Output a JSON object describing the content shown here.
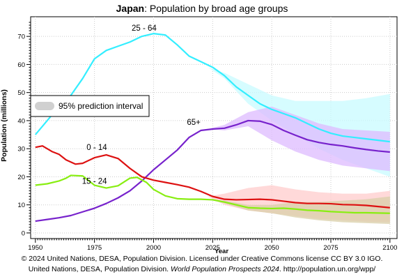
{
  "chart_data": {
    "type": "line",
    "title_country": "Japan",
    "title_rest": ": Population by broad age groups",
    "xlabel": "Year",
    "ylabel": "Population (millions)",
    "xlim": [
      1948,
      2103
    ],
    "ylim": [
      -2,
      77
    ],
    "x_ticks": [
      1950,
      1975,
      2000,
      2025,
      2050,
      2075,
      2100
    ],
    "y_ticks": [
      0,
      10,
      20,
      30,
      40,
      50,
      60,
      70
    ],
    "legend": {
      "label": "95% prediction interval",
      "placement": "left-middle"
    },
    "series": [
      {
        "name": "25 - 64",
        "color": "#33eeff",
        "band_color": "#c8fbff",
        "label_x": 1996,
        "label_y": 72,
        "points": [
          [
            1950,
            35
          ],
          [
            1955,
            40
          ],
          [
            1960,
            45
          ],
          [
            1965,
            49
          ],
          [
            1970,
            55
          ],
          [
            1975,
            62
          ],
          [
            1980,
            65
          ],
          [
            1985,
            66.5
          ],
          [
            1990,
            68
          ],
          [
            1995,
            70
          ],
          [
            2000,
            71
          ],
          [
            2005,
            70.5
          ],
          [
            2010,
            67
          ],
          [
            2015,
            63
          ],
          [
            2020,
            61
          ],
          [
            2025,
            59
          ],
          [
            2030,
            56
          ],
          [
            2035,
            52
          ],
          [
            2040,
            49
          ],
          [
            2045,
            46
          ],
          [
            2050,
            44
          ],
          [
            2055,
            42.5
          ],
          [
            2060,
            41
          ],
          [
            2065,
            39
          ],
          [
            2070,
            37
          ],
          [
            2075,
            35.5
          ],
          [
            2080,
            34.5
          ],
          [
            2085,
            34
          ],
          [
            2090,
            33.5
          ],
          [
            2095,
            33
          ],
          [
            2100,
            32.5
          ]
        ],
        "band_upper": [
          [
            2023,
            59
          ],
          [
            2030,
            57
          ],
          [
            2040,
            53
          ],
          [
            2050,
            49
          ],
          [
            2060,
            47
          ],
          [
            2070,
            47
          ],
          [
            2080,
            47
          ],
          [
            2090,
            48
          ],
          [
            2100,
            49.5
          ]
        ],
        "band_lower": [
          [
            2023,
            59
          ],
          [
            2030,
            55
          ],
          [
            2040,
            46
          ],
          [
            2050,
            40
          ],
          [
            2060,
            35
          ],
          [
            2070,
            30
          ],
          [
            2080,
            26
          ],
          [
            2090,
            23
          ],
          [
            2100,
            20
          ]
        ]
      },
      {
        "name": "65+",
        "color": "#7722cc",
        "band_color": "#ddbbff",
        "label_x": 2017,
        "label_y": 38.5,
        "points": [
          [
            1950,
            4.2
          ],
          [
            1955,
            4.8
          ],
          [
            1960,
            5.4
          ],
          [
            1965,
            6.2
          ],
          [
            1970,
            7.5
          ],
          [
            1975,
            8.8
          ],
          [
            1980,
            10.5
          ],
          [
            1985,
            12.5
          ],
          [
            1990,
            15
          ],
          [
            1995,
            18.5
          ],
          [
            2000,
            22.5
          ],
          [
            2005,
            26
          ],
          [
            2010,
            29.5
          ],
          [
            2015,
            34
          ],
          [
            2020,
            36.5
          ],
          [
            2025,
            37
          ],
          [
            2030,
            37.3
          ],
          [
            2035,
            38.5
          ],
          [
            2040,
            40
          ],
          [
            2045,
            39.8
          ],
          [
            2050,
            38.6
          ],
          [
            2055,
            36.5
          ],
          [
            2060,
            34.8
          ],
          [
            2065,
            33.2
          ],
          [
            2070,
            32.2
          ],
          [
            2075,
            31.5
          ],
          [
            2080,
            31
          ],
          [
            2085,
            30.3
          ],
          [
            2090,
            29.7
          ],
          [
            2095,
            29.2
          ],
          [
            2100,
            28.8
          ]
        ],
        "band_upper": [
          [
            2023,
            37
          ],
          [
            2030,
            38.5
          ],
          [
            2040,
            43
          ],
          [
            2050,
            45
          ],
          [
            2060,
            42
          ],
          [
            2070,
            39
          ],
          [
            2080,
            37
          ],
          [
            2090,
            36.5
          ],
          [
            2100,
            36
          ]
        ],
        "band_lower": [
          [
            2023,
            37
          ],
          [
            2030,
            36.5
          ],
          [
            2040,
            38
          ],
          [
            2050,
            33
          ],
          [
            2060,
            29
          ],
          [
            2070,
            26
          ],
          [
            2080,
            24
          ],
          [
            2090,
            23
          ],
          [
            2100,
            22
          ]
        ]
      },
      {
        "name": "0 - 14",
        "color": "#dd1111",
        "band_color": "#ffcccc",
        "label_x": 1976,
        "label_y": 29.5,
        "points": [
          [
            1950,
            30.5
          ],
          [
            1953,
            31
          ],
          [
            1957,
            29
          ],
          [
            1960,
            28
          ],
          [
            1963,
            26
          ],
          [
            1967,
            24.5
          ],
          [
            1970,
            24.8
          ],
          [
            1975,
            26.8
          ],
          [
            1980,
            27.8
          ],
          [
            1985,
            26.5
          ],
          [
            1990,
            23
          ],
          [
            1995,
            20
          ],
          [
            2000,
            18.8
          ],
          [
            2005,
            18
          ],
          [
            2010,
            17.2
          ],
          [
            2015,
            16.3
          ],
          [
            2020,
            14.8
          ],
          [
            2025,
            13
          ],
          [
            2030,
            12
          ],
          [
            2035,
            11.8
          ],
          [
            2040,
            11.9
          ],
          [
            2045,
            12
          ],
          [
            2050,
            11.8
          ],
          [
            2055,
            11.3
          ],
          [
            2060,
            10.8
          ],
          [
            2065,
            10.5
          ],
          [
            2070,
            10.5
          ],
          [
            2075,
            10.4
          ],
          [
            2080,
            10.1
          ],
          [
            2085,
            10
          ],
          [
            2090,
            9.8
          ],
          [
            2095,
            9.4
          ],
          [
            2100,
            9.0
          ]
        ],
        "band_upper": [
          [
            2023,
            13
          ],
          [
            2030,
            14
          ],
          [
            2040,
            16
          ],
          [
            2050,
            17
          ],
          [
            2060,
            15.5
          ],
          [
            2070,
            14.5
          ],
          [
            2080,
            14
          ],
          [
            2090,
            14
          ],
          [
            2100,
            15
          ]
        ],
        "band_lower": [
          [
            2023,
            13
          ],
          [
            2030,
            10
          ],
          [
            2040,
            8
          ],
          [
            2050,
            7
          ],
          [
            2060,
            6
          ],
          [
            2070,
            5
          ],
          [
            2080,
            4.5
          ],
          [
            2090,
            4
          ],
          [
            2100,
            3.8
          ]
        ]
      },
      {
        "name": "15 - 24",
        "color": "#88ee11",
        "band_color": "#d9cfa8",
        "label_x": 1975,
        "label_y": 17.5,
        "points": [
          [
            1950,
            17
          ],
          [
            1955,
            17.5
          ],
          [
            1960,
            18.5
          ],
          [
            1963,
            19.5
          ],
          [
            1965,
            20.5
          ],
          [
            1970,
            20.3
          ],
          [
            1975,
            17
          ],
          [
            1980,
            16
          ],
          [
            1985,
            16.8
          ],
          [
            1990,
            19.5
          ],
          [
            1993,
            19.8
          ],
          [
            1997,
            18
          ],
          [
            2000,
            15.5
          ],
          [
            2005,
            13.2
          ],
          [
            2010,
            12.2
          ],
          [
            2015,
            12
          ],
          [
            2020,
            12
          ],
          [
            2025,
            11.8
          ],
          [
            2030,
            11
          ],
          [
            2035,
            10
          ],
          [
            2040,
            9
          ],
          [
            2045,
            8.8
          ],
          [
            2050,
            8.7
          ],
          [
            2055,
            8.8
          ],
          [
            2060,
            8.5
          ],
          [
            2065,
            8.1
          ],
          [
            2070,
            7.9
          ],
          [
            2075,
            7.6
          ],
          [
            2080,
            7.4
          ],
          [
            2085,
            7.2
          ],
          [
            2090,
            7.2
          ],
          [
            2095,
            7.1
          ],
          [
            2100,
            7.0
          ]
        ],
        "band_upper": [
          [
            2023,
            12
          ],
          [
            2030,
            11.5
          ],
          [
            2040,
            10
          ],
          [
            2050,
            10
          ],
          [
            2060,
            11
          ],
          [
            2070,
            11
          ],
          [
            2080,
            11.5
          ],
          [
            2090,
            12
          ],
          [
            2100,
            13
          ]
        ],
        "band_lower": [
          [
            2023,
            12
          ],
          [
            2030,
            10.5
          ],
          [
            2040,
            8
          ],
          [
            2050,
            7
          ],
          [
            2060,
            5.5
          ],
          [
            2070,
            4.5
          ],
          [
            2080,
            3.8
          ],
          [
            2090,
            3.5
          ],
          [
            2100,
            3.2
          ]
        ]
      }
    ],
    "grid": true
  },
  "footer": {
    "line1": "© 2024 United Nations, DESA, Population Division. Licensed under Creative Commons license CC BY 3.0 IGO.",
    "line2_prefix": "United Nations, DESA, Population Division. ",
    "line2_italic": "World Population Prospects 2024",
    "line2_suffix": ". http://population.un.org/wpp/"
  }
}
